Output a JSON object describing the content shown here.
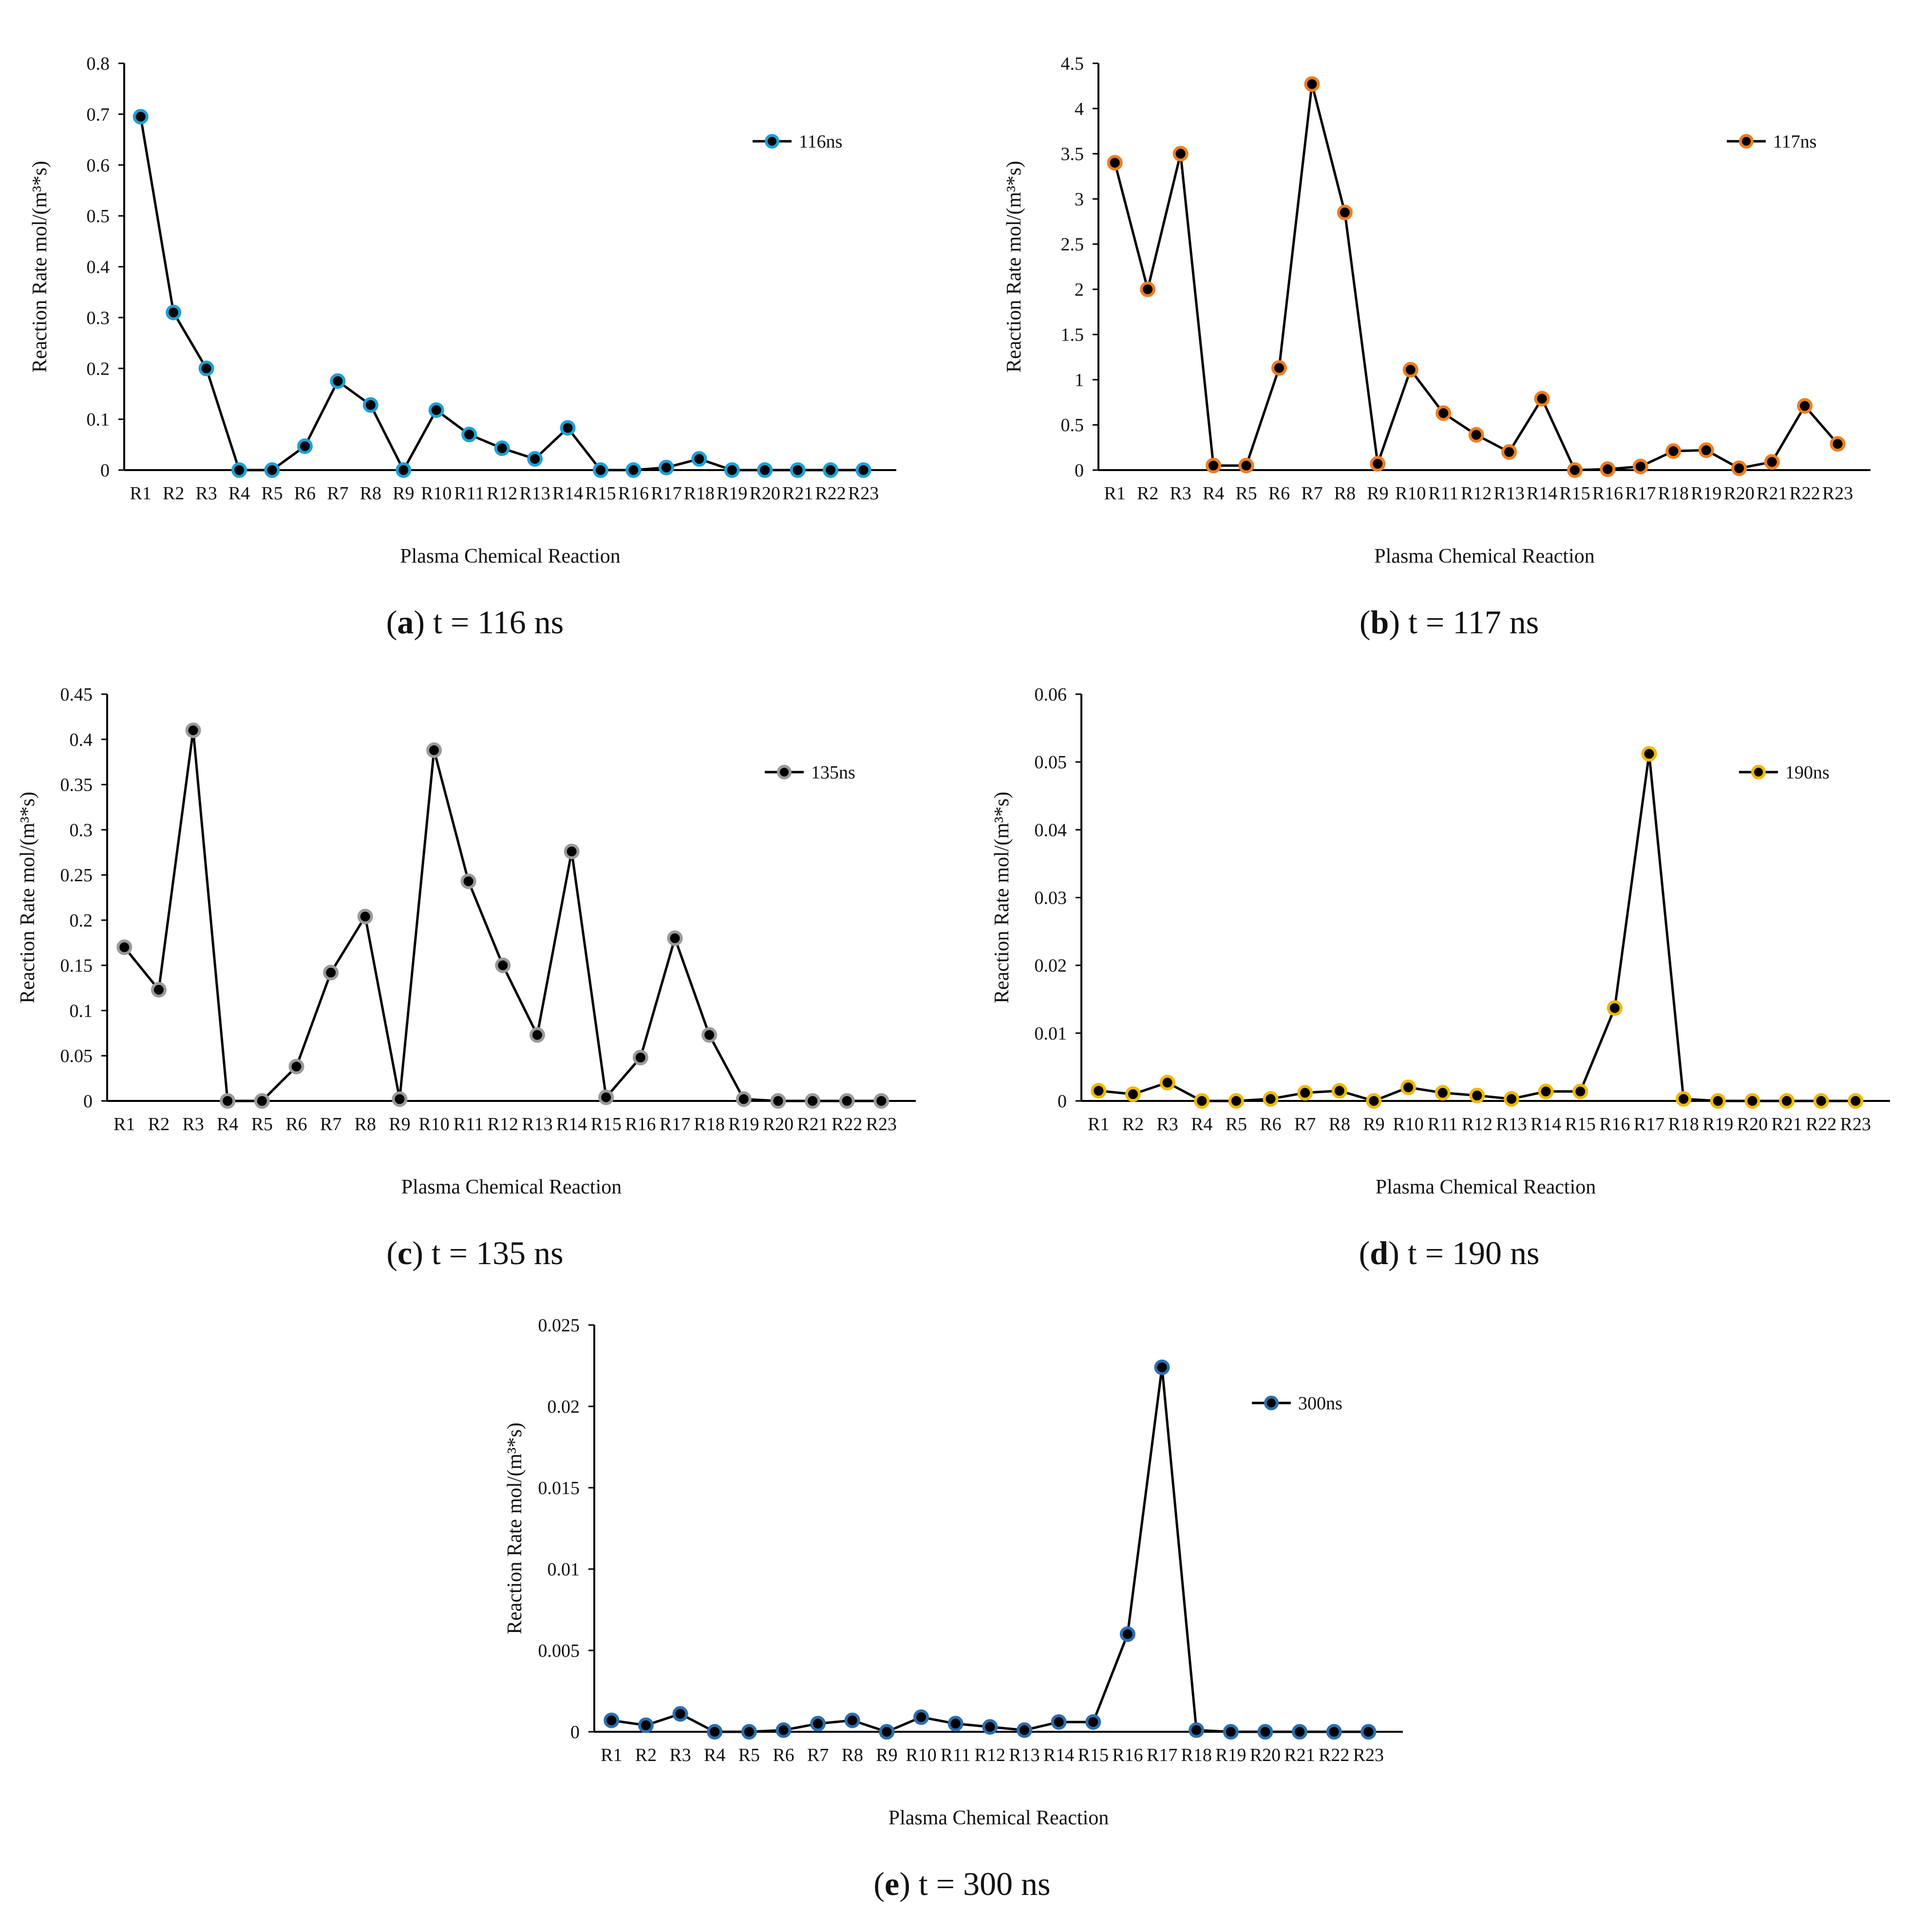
{
  "figure": {
    "categories": [
      "R1",
      "R2",
      "R3",
      "R4",
      "R5",
      "R6",
      "R7",
      "R8",
      "R9",
      "R10",
      "R11",
      "R12",
      "R13",
      "R14",
      "R15",
      "R16",
      "R17",
      "R18",
      "R19",
      "R20",
      "R21",
      "R22",
      "R23"
    ]
  },
  "chart_data": [
    {
      "type": "line",
      "panel": "a",
      "caption_letter": "a",
      "caption_text": "t = 116 ns",
      "xlabel": "Plasma Chemical Reaction",
      "ylabel": "Reaction Rate  mol/(m³*s)",
      "ylim": [
        0,
        0.8
      ],
      "yticks": [
        "0",
        "0.1",
        "0.2",
        "0.3",
        "0.4",
        "0.5",
        "0.6",
        "0.7",
        "0.8"
      ],
      "grid": false,
      "legend": "top-right",
      "series": [
        {
          "name": "116ns",
          "marker_color": "#1ea0d8",
          "values": [
            0.695,
            0.31,
            0.2,
            0.0,
            0.0,
            0.047,
            0.175,
            0.128,
            0.0,
            0.118,
            0.07,
            0.043,
            0.022,
            0.083,
            0.0,
            0.0,
            0.005,
            0.022,
            0.0,
            0.0,
            0.0,
            0.0,
            0.0
          ]
        }
      ]
    },
    {
      "type": "line",
      "panel": "b",
      "caption_letter": "b",
      "caption_text": "t = 117 ns",
      "xlabel": "Plasma Chemical Reaction",
      "ylabel": "Reaction Rate  mol/(m³*s)",
      "ylim": [
        0,
        4.5
      ],
      "yticks": [
        "0",
        "0.5",
        "1",
        "1.5",
        "2",
        "2.5",
        "3",
        "3.5",
        "4",
        "4.5"
      ],
      "grid": false,
      "legend": "top-right",
      "series": [
        {
          "name": "117ns",
          "marker_color": "#f07d1e",
          "values": [
            3.4,
            2.0,
            3.5,
            0.05,
            0.05,
            1.13,
            4.27,
            2.85,
            0.07,
            1.11,
            0.63,
            0.39,
            0.2,
            0.79,
            0.0,
            0.01,
            0.04,
            0.21,
            0.22,
            0.02,
            0.09,
            0.71,
            0.29
          ]
        }
      ]
    },
    {
      "type": "line",
      "panel": "c",
      "caption_letter": "c",
      "caption_text": "t = 135 ns",
      "xlabel": "Plasma Chemical Reaction",
      "ylabel": "Reaction Rate  mol/(m³*s)",
      "ylim": [
        0,
        0.45
      ],
      "yticks": [
        "0",
        "0.05",
        "0.1",
        "0.15",
        "0.2",
        "0.25",
        "0.3",
        "0.35",
        "0.4",
        "0.45"
      ],
      "grid": false,
      "legend": "top-right",
      "series": [
        {
          "name": "135ns",
          "marker_color": "#9a9a9a",
          "values": [
            0.17,
            0.123,
            0.41,
            0.0,
            0.0,
            0.038,
            0.142,
            0.204,
            0.002,
            0.388,
            0.243,
            0.15,
            0.073,
            0.276,
            0.004,
            0.048,
            0.18,
            0.073,
            0.002,
            0.0,
            0.0,
            0.0,
            0.0
          ]
        }
      ]
    },
    {
      "type": "line",
      "panel": "d",
      "caption_letter": "d",
      "caption_text": "t = 190 ns",
      "xlabel": "Plasma Chemical Reaction",
      "ylabel": "Reaction Rate  mol/(m³*s)",
      "ylim": [
        0,
        0.06
      ],
      "yticks": [
        "0",
        "0.01",
        "0.02",
        "0.03",
        "0.04",
        "0.05",
        "0.06"
      ],
      "grid": false,
      "legend": "top-right",
      "series": [
        {
          "name": "190ns",
          "marker_color": "#f2b705",
          "values": [
            0.0015,
            0.001,
            0.0027,
            0.0,
            0.0,
            0.0003,
            0.0012,
            0.0015,
            0.0,
            0.002,
            0.0012,
            0.0008,
            0.0003,
            0.0014,
            0.0014,
            0.0137,
            0.0512,
            0.0003,
            0.0,
            0.0,
            0.0,
            0.0,
            0.0
          ]
        }
      ]
    },
    {
      "type": "line",
      "panel": "e",
      "caption_letter": "e",
      "caption_text": "t = 300 ns",
      "xlabel": "Plasma Chemical Reaction",
      "ylabel": "Reaction Rate  mol/(m³*s)",
      "ylim": [
        0,
        0.025
      ],
      "yticks": [
        "0",
        "0.005",
        "0.01",
        "0.015",
        "0.02",
        "0.025"
      ],
      "grid": false,
      "legend": "top-right",
      "series": [
        {
          "name": "300ns",
          "marker_color": "#2a6fb0",
          "values": [
            0.0007,
            0.0004,
            0.0011,
            0.0,
            0.0,
            0.0001,
            0.0005,
            0.0007,
            0.0,
            0.0009,
            0.0005,
            0.0003,
            0.0001,
            0.0006,
            0.0006,
            0.006,
            0.0224,
            0.0001,
            0.0,
            0.0,
            0.0,
            0.0,
            0.0
          ]
        }
      ]
    }
  ]
}
